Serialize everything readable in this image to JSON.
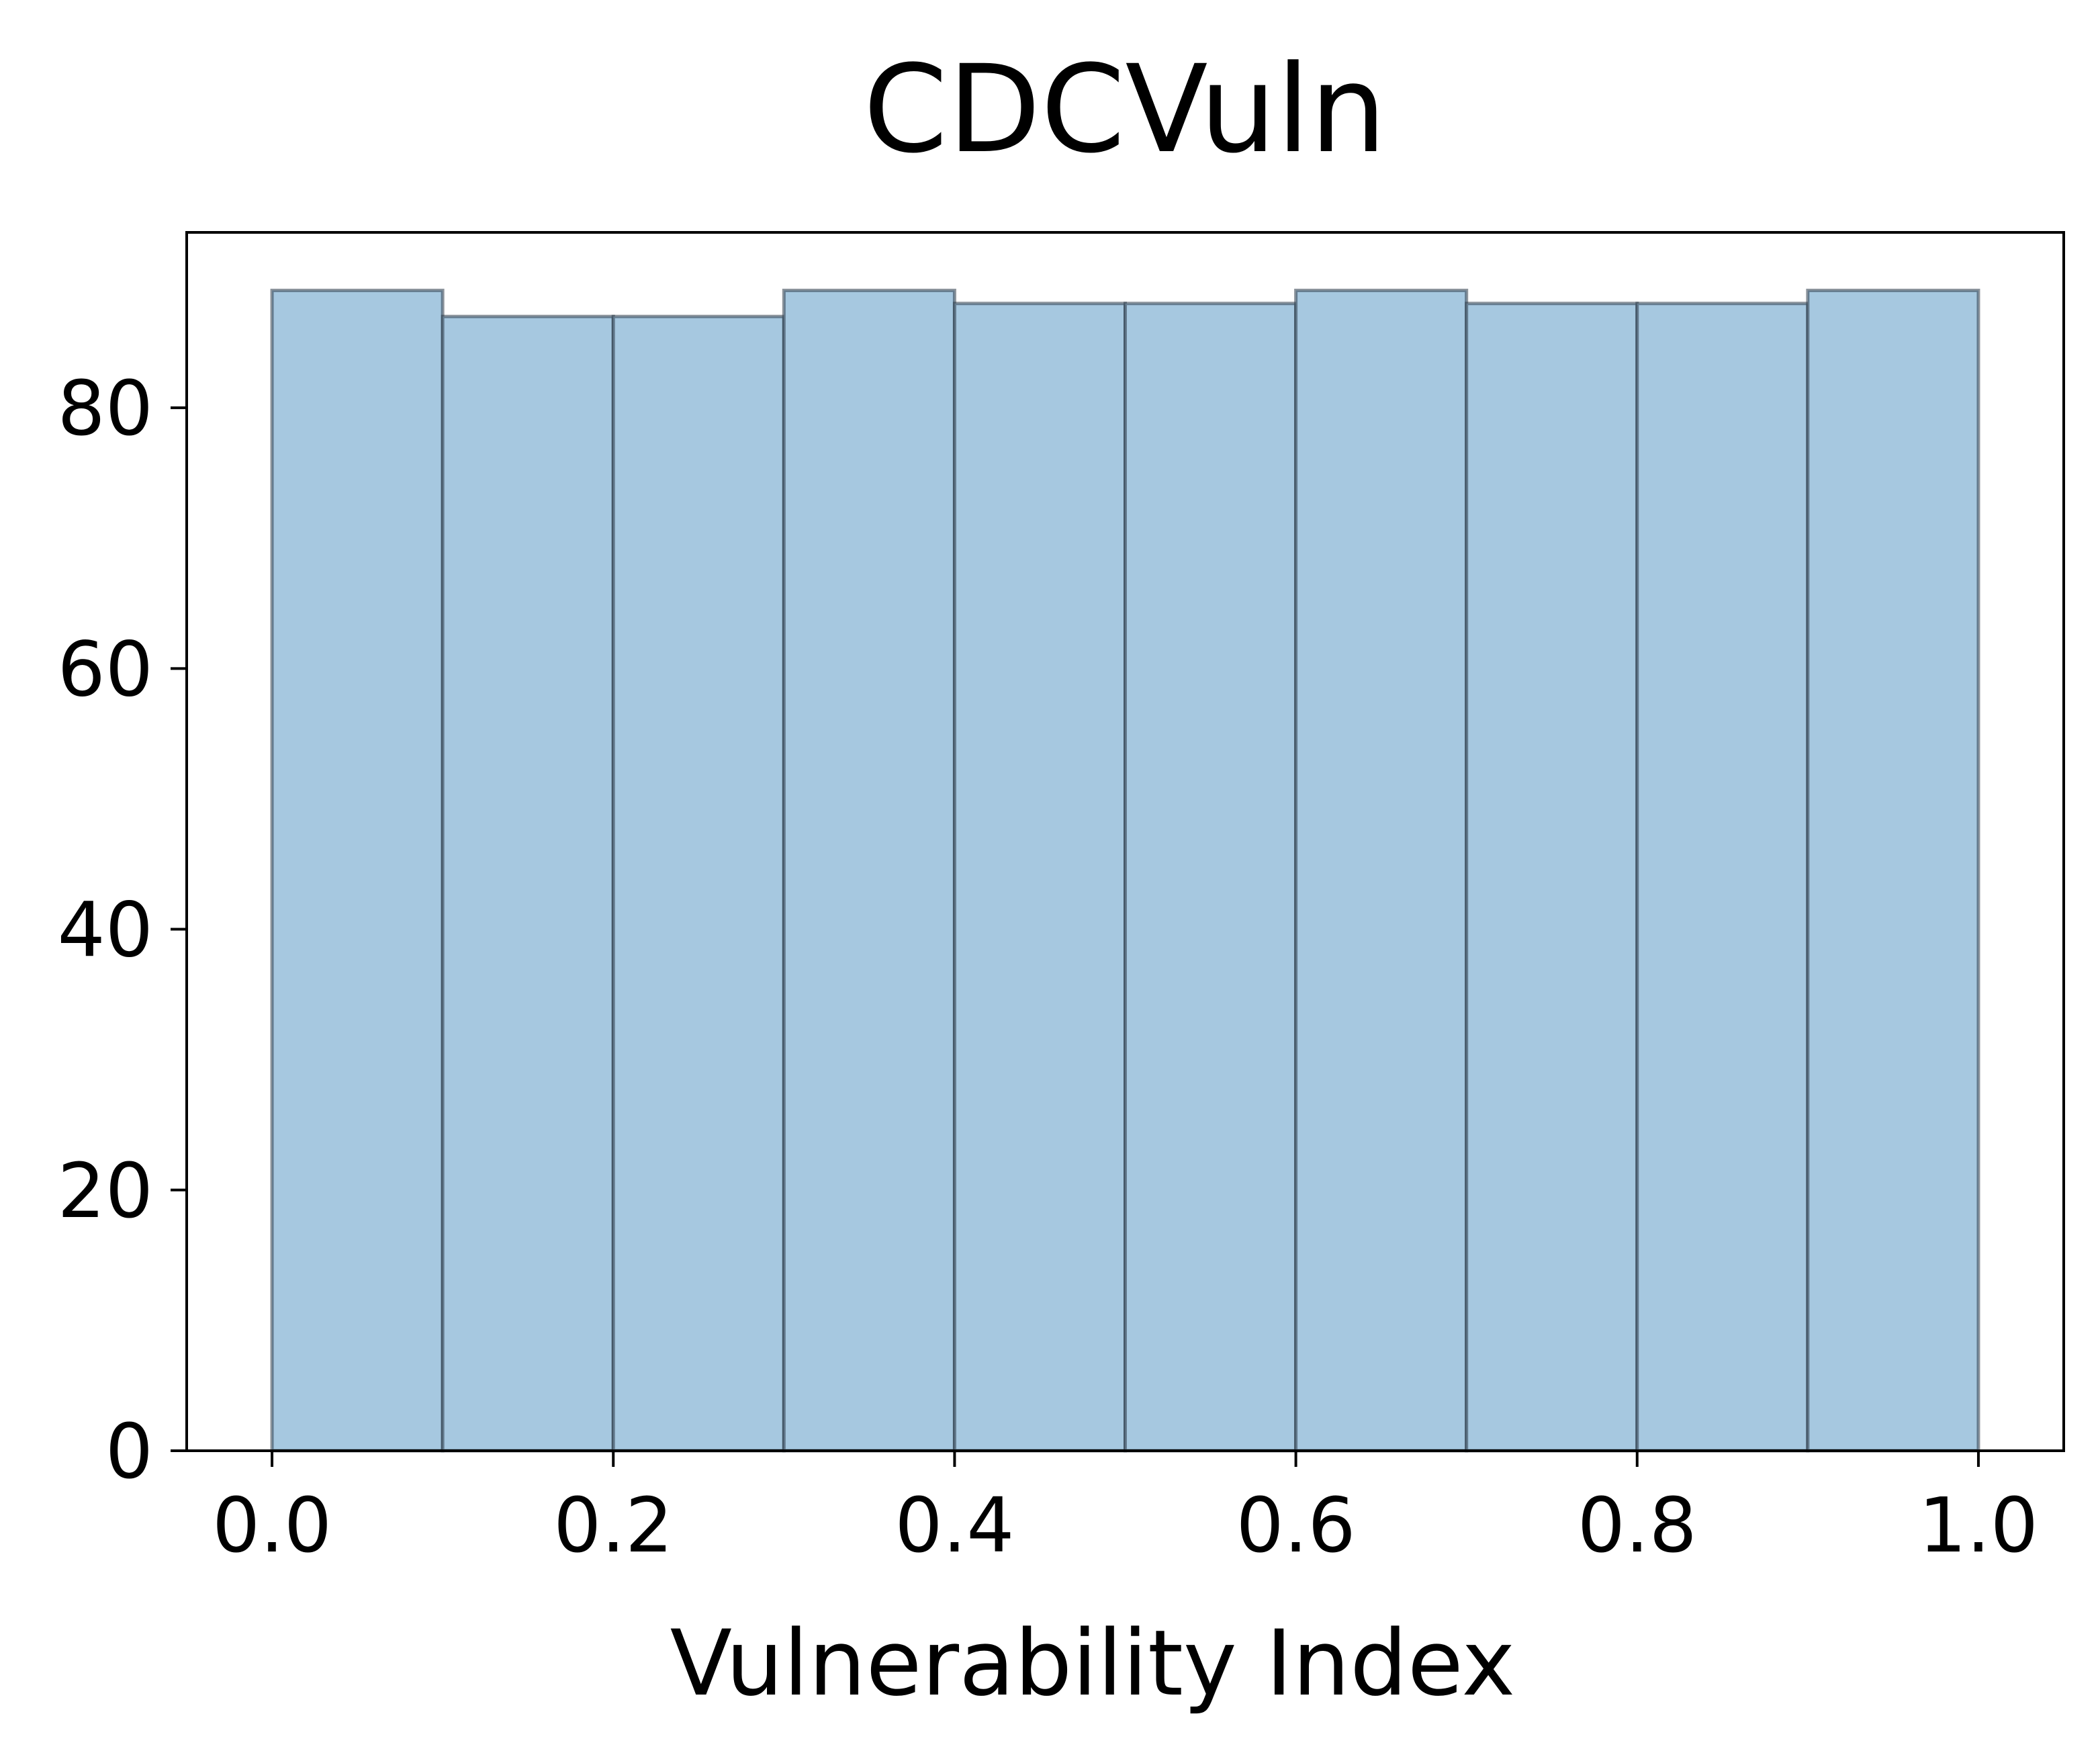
{
  "chart_data": {
    "type": "bar",
    "title": "CDCVuln",
    "xlabel": "Vulnerability Index",
    "ylabel": "",
    "bins": [
      {
        "x0": 0.0,
        "x1": 0.1,
        "count": 89
      },
      {
        "x0": 0.1,
        "x1": 0.2,
        "count": 87
      },
      {
        "x0": 0.2,
        "x1": 0.3,
        "count": 87
      },
      {
        "x0": 0.3,
        "x1": 0.4,
        "count": 89
      },
      {
        "x0": 0.4,
        "x1": 0.5,
        "count": 88
      },
      {
        "x0": 0.5,
        "x1": 0.6,
        "count": 88
      },
      {
        "x0": 0.6,
        "x1": 0.7,
        "count": 89
      },
      {
        "x0": 0.7,
        "x1": 0.8,
        "count": 88
      },
      {
        "x0": 0.8,
        "x1": 0.9,
        "count": 88
      },
      {
        "x0": 0.9,
        "x1": 1.0,
        "count": 89
      }
    ],
    "xlim": [
      -0.05,
      1.05
    ],
    "ylim": [
      0,
      93.45
    ],
    "x_ticks": [
      0.0,
      0.2,
      0.4,
      0.6,
      0.8,
      1.0
    ],
    "x_tick_labels": [
      "0.0",
      "0.2",
      "0.4",
      "0.6",
      "0.8",
      "1.0"
    ],
    "y_ticks": [
      0,
      20,
      40,
      60,
      80
    ],
    "y_tick_labels": [
      "0",
      "20",
      "40",
      "60",
      "80"
    ],
    "grid": false,
    "bar_color": "#a6c8e0",
    "edge_color": "#2b3a48"
  }
}
